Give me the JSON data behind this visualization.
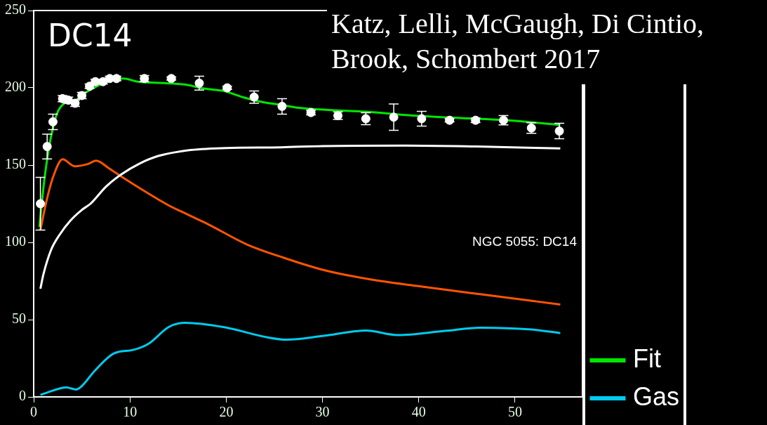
{
  "chart_data": {
    "type": "line",
    "annotations": [
      "DC14",
      "Katz, Lelli, McGaugh, Di Cintio, Brook, Schombert 2017",
      "NGC 5055: DC14"
    ],
    "xlim": [
      0,
      57
    ],
    "ylim": [
      0,
      250
    ],
    "xticks": [
      0,
      10,
      20,
      30,
      40,
      50
    ],
    "yticks": [
      0,
      50,
      100,
      150,
      200,
      250
    ],
    "grid": false,
    "legend": "bottom right",
    "series": [
      {
        "type": "scatter",
        "marker": "circle",
        "color": "#ffffff",
        "x": [
          0.7,
          1.4,
          2.0,
          3.0,
          3.6,
          4.3,
          5.0,
          5.8,
          6.4,
          7.2,
          7.9,
          8.6,
          11.5,
          14.3,
          17.2,
          20.1,
          22.9,
          25.8,
          28.8,
          31.6,
          34.5,
          37.4,
          40.3,
          43.2,
          45.9,
          48.8,
          51.7,
          54.6
        ],
        "values": [
          125,
          162,
          178,
          193,
          192,
          190,
          195,
          201,
          204,
          204,
          206,
          206,
          206,
          206,
          203,
          200,
          194,
          188,
          184,
          182,
          180,
          181,
          180,
          179,
          179,
          179,
          174,
          172
        ],
        "errors": [
          17,
          8,
          5,
          2,
          2,
          2,
          2,
          1.5,
          1.5,
          1.5,
          1.5,
          1.5,
          2,
          1,
          4.5,
          1,
          4,
          5,
          1.5,
          2.4,
          3.9,
          8.5,
          4.8,
          1,
          1.5,
          3,
          3.4,
          5
        ]
      },
      {
        "name": "Fit",
        "color": "#00e600",
        "x": [
          0.6,
          1.1,
          1.7,
          2.4,
          3.2,
          4.4,
          5.4,
          6.4,
          7.9,
          9.3,
          10.8,
          13.8,
          15.8,
          17.7,
          19.7,
          21.7,
          23.6,
          25.6,
          27.6,
          29.6,
          34.5,
          39.4,
          44.3,
          49.2,
          54.7
        ],
        "values": [
          110,
          140,
          165,
          183,
          190,
          192,
          197,
          null,
          null,
          206,
          204,
          203,
          202,
          199.5,
          198,
          194,
          191,
          189,
          187,
          186,
          184.5,
          182,
          180.5,
          179,
          176
        ]
      },
      {
        "name": "Gas",
        "color": "#00ccee",
        "x": [
          0.7,
          1.35,
          3.4,
          4.4,
          5.0,
          6.3,
          8.3,
          10.4,
          12.0,
          14.0,
          15.7,
          19.8,
          24.3,
          26.3,
          30.0,
          34.5,
          37.8,
          42.7,
          46.4,
          51.7,
          54.7
        ],
        "values": [
          1.3,
          2.7,
          6.1,
          4.8,
          7,
          16.6,
          28,
          30.5,
          34.7,
          45.1,
          48,
          45.1,
          38.5,
          37,
          39.4,
          42.9,
          40,
          42.7,
          44.8,
          43.6,
          41.3
        ]
      },
      {
        "color": "#ffffff",
        "x": [
          0.7,
          1,
          1.8,
          2.7,
          3.8,
          5,
          5.9,
          7.5,
          9.1,
          11,
          13,
          16,
          20,
          25.7,
          30,
          38.6,
          46,
          54.7
        ],
        "values": [
          70,
          79,
          95,
          105,
          114,
          121,
          125,
          136,
          144,
          151,
          156,
          159.5,
          161,
          161.5,
          162.3,
          162.6,
          162,
          160.8
        ]
      },
      {
        "color": "#ff5500",
        "x": [
          0.7,
          1.3,
          2,
          3,
          4.3,
          5.6,
          6.5,
          7.8,
          9.5,
          11.6,
          14,
          16,
          18.1,
          22.2,
          26,
          30,
          35,
          39.8,
          46.8,
          54.7
        ],
        "values": [
          108,
          126,
          142,
          153.7,
          149.2,
          150.6,
          152.8,
          148,
          141,
          132.8,
          124,
          118,
          111.8,
          98.5,
          90,
          82.3,
          76,
          71.8,
          66.1,
          59.8
        ]
      }
    ]
  }
}
